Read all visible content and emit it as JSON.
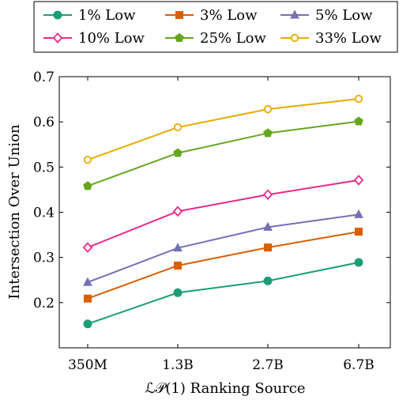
{
  "chart_data": {
    "type": "line",
    "categories": [
      "350M",
      "1.3B",
      "2.7B",
      "6.7B"
    ],
    "xlabel": "ℒ𝒫(1) Ranking Source",
    "ylabel": "Intersection Over Union",
    "ylim": [
      0.1,
      0.7
    ],
    "yticks": [
      0.2,
      0.3,
      0.4,
      0.5,
      0.6,
      0.7
    ],
    "grid": false,
    "legend_position": "top",
    "series": [
      {
        "name": "1% Low",
        "color": "#1b9e77",
        "marker": "circle",
        "values": [
          0.153,
          0.222,
          0.248,
          0.289
        ]
      },
      {
        "name": "3% Low",
        "color": "#d95f02",
        "marker": "square",
        "values": [
          0.209,
          0.282,
          0.322,
          0.357
        ]
      },
      {
        "name": "5% Low",
        "color": "#7570b3",
        "marker": "triangle",
        "values": [
          0.245,
          0.321,
          0.367,
          0.395
        ]
      },
      {
        "name": "10% Low",
        "color": "#e7298a",
        "marker": "diamond-open",
        "values": [
          0.322,
          0.402,
          0.439,
          0.471
        ]
      },
      {
        "name": "25% Low",
        "color": "#66a61e",
        "marker": "pentagon",
        "values": [
          0.458,
          0.531,
          0.575,
          0.601
        ]
      },
      {
        "name": "33% Low",
        "color": "#e6ab02",
        "marker": "circle-open",
        "values": [
          0.516,
          0.588,
          0.628,
          0.651
        ]
      }
    ]
  }
}
